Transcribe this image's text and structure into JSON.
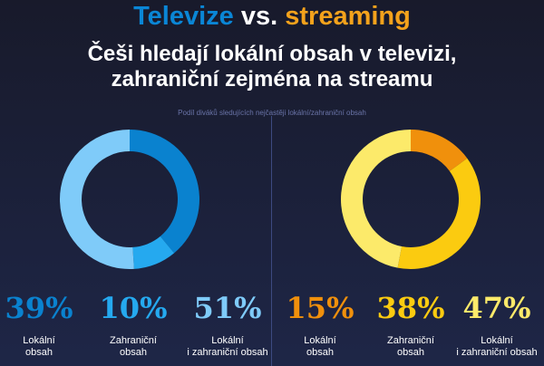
{
  "title": {
    "part1": "Televize",
    "part2": "vs.",
    "part3": "streaming",
    "color1": "#0a86d6",
    "color3": "#f3a21c"
  },
  "subtitle_line1": "Češi hledají lokální obsah v televizi,",
  "subtitle_line2": "zahraniční zejména na streamu",
  "caption": "Podíl diváků sledujících nejčastěji lokální/zahraniční obsah",
  "chart_data": [
    {
      "type": "pie",
      "donut": true,
      "categories": [
        "Lokální obsah",
        "Zahraniční obsah",
        "Lokální i zahraniční obsah"
      ],
      "values": [
        39,
        10,
        51
      ],
      "colors": [
        "#0a82cf",
        "#25a9ef",
        "#7fcbf9"
      ],
      "labels": [
        "39%",
        "10%",
        "51%"
      ]
    },
    {
      "type": "pie",
      "donut": true,
      "categories": [
        "Lokální obsah",
        "Zahraniční obsah",
        "Lokální i zahraniční obsah"
      ],
      "values": [
        15,
        38,
        47
      ],
      "colors": [
        "#f0900c",
        "#fbcb10",
        "#fcea6a"
      ],
      "labels": [
        "15%",
        "38%",
        "47%"
      ]
    }
  ],
  "stats": [
    {
      "pct": "39%",
      "l1": "Lokální",
      "l2": "obsah",
      "color": "#0a82cf"
    },
    {
      "pct": "10%",
      "l1": "Zahraniční",
      "l2": "obsah",
      "color": "#25a9ef"
    },
    {
      "pct": "51%",
      "l1": "Lokální",
      "l2": "i zahraniční obsah",
      "color": "#7fcbf9"
    },
    {
      "pct": "15%",
      "l1": "Lokální",
      "l2": "obsah",
      "color": "#f0900c"
    },
    {
      "pct": "38%",
      "l1": "Zahraniční",
      "l2": "obsah",
      "color": "#fbcb10"
    },
    {
      "pct": "47%",
      "l1": "Lokální",
      "l2": "i zahraniční obsah",
      "color": "#fcea6a"
    }
  ]
}
